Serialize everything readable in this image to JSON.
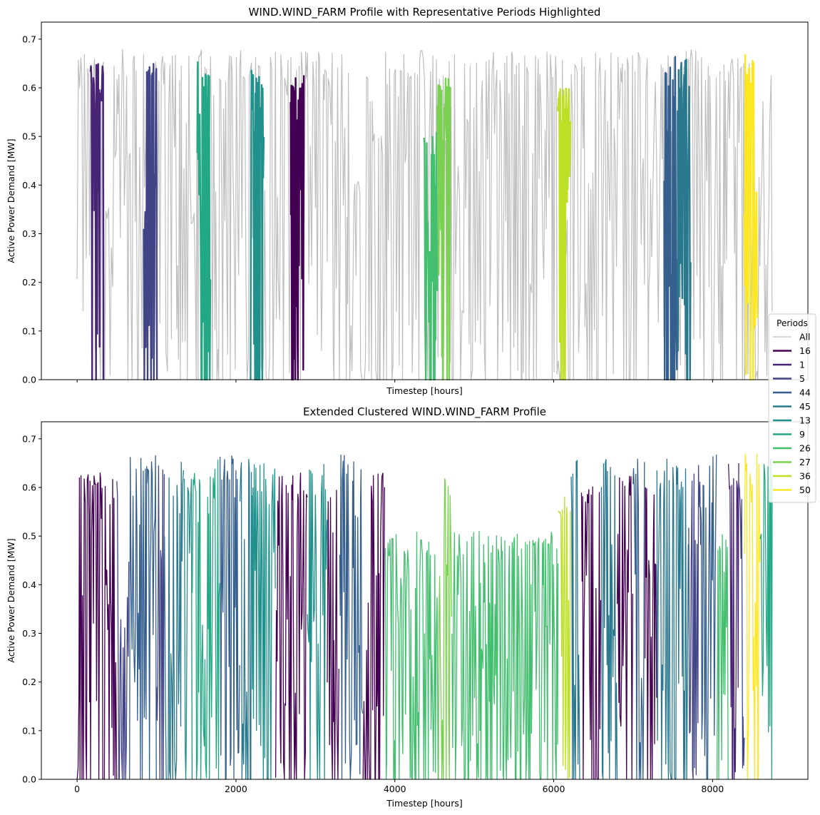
{
  "chart_data": [
    {
      "type": "line",
      "title": "WIND.WIND_FARM Profile with Representative Periods Highlighted",
      "xlabel": "Timestep [hours]",
      "ylabel": "Active Power Demand [MW]",
      "xlim": [
        -450,
        9200
      ],
      "ylim": [
        0,
        0.735
      ],
      "yticks": [
        "0.0",
        "0.1",
        "0.2",
        "0.3",
        "0.4",
        "0.5",
        "0.6",
        "0.7"
      ],
      "xticks": [
        0,
        2000,
        4000,
        6000,
        8000
      ],
      "show_xticklabels": false,
      "grid": false,
      "background_series": {
        "name": "All",
        "color": "#bfbfbf",
        "x_range": [
          0,
          8760
        ],
        "approx_min": 0.0,
        "approx_max": 0.7
      },
      "highlighted_periods": [
        {
          "name": "1",
          "color": "#482475",
          "x_range": [
            168,
            336
          ],
          "approx_max": 0.66
        },
        {
          "name": "5",
          "color": "#414487",
          "x_range": [
            840,
            1008
          ],
          "approx_max": 0.65
        },
        {
          "name": "9",
          "color": "#22a884",
          "x_range": [
            1512,
            1680
          ],
          "approx_max": 0.66
        },
        {
          "name": "13",
          "color": "#21918c",
          "x_range": [
            2184,
            2352
          ],
          "approx_max": 0.65
        },
        {
          "name": "16",
          "color": "#440154",
          "x_range": [
            2688,
            2856
          ],
          "approx_max": 0.63
        },
        {
          "name": "26",
          "color": "#44bf70",
          "x_range": [
            4368,
            4536
          ],
          "approx_max": 0.51
        },
        {
          "name": "27",
          "color": "#7ad151",
          "x_range": [
            4536,
            4704
          ],
          "approx_max": 0.62
        },
        {
          "name": "36",
          "color": "#bddf26",
          "x_range": [
            6048,
            6216
          ],
          "approx_max": 0.6
        },
        {
          "name": "44",
          "color": "#355f8d",
          "x_range": [
            7392,
            7560
          ],
          "approx_max": 0.67
        },
        {
          "name": "45",
          "color": "#2a788e",
          "x_range": [
            7560,
            7728
          ],
          "approx_max": 0.66
        },
        {
          "name": "50",
          "color": "#fde725",
          "x_range": [
            8400,
            8568
          ],
          "approx_max": 0.67
        }
      ]
    },
    {
      "type": "line",
      "title": "Extended Clustered WIND.WIND_FARM Profile",
      "xlabel": "Timestep [hours]",
      "ylabel": "Active Power Demand [MW]",
      "xlim": [
        -450,
        9200
      ],
      "ylim": [
        0,
        0.735
      ],
      "yticks": [
        "0.0",
        "0.1",
        "0.2",
        "0.3",
        "0.4",
        "0.5",
        "0.6",
        "0.7"
      ],
      "xticks": [
        0,
        2000,
        4000,
        6000,
        8000
      ],
      "show_xticklabels": true,
      "grid": false,
      "segments": [
        {
          "period": "16",
          "x_range": [
            0,
            500
          ]
        },
        {
          "period": "5",
          "x_range": [
            500,
            660
          ]
        },
        {
          "period": "44",
          "x_range": [
            660,
            1000
          ]
        },
        {
          "period": "5",
          "x_range": [
            1000,
            1100
          ]
        },
        {
          "period": "45",
          "x_range": [
            1100,
            1350
          ]
        },
        {
          "period": "13",
          "x_range": [
            1350,
            1450
          ]
        },
        {
          "period": "9",
          "x_range": [
            1450,
            1800
          ]
        },
        {
          "period": "44",
          "x_range": [
            1800,
            2050
          ]
        },
        {
          "period": "45",
          "x_range": [
            2050,
            2200
          ]
        },
        {
          "period": "13",
          "x_range": [
            2200,
            2500
          ]
        },
        {
          "period": "16",
          "x_range": [
            2500,
            2900
          ]
        },
        {
          "period": "13",
          "x_range": [
            2900,
            3150
          ]
        },
        {
          "period": "16",
          "x_range": [
            3150,
            3300
          ]
        },
        {
          "period": "44",
          "x_range": [
            3300,
            3600
          ]
        },
        {
          "period": "16",
          "x_range": [
            3600,
            3880
          ]
        },
        {
          "period": "26",
          "x_range": [
            3880,
            4550
          ]
        },
        {
          "period": "27",
          "x_range": [
            4550,
            4720
          ]
        },
        {
          "period": "26",
          "x_range": [
            4720,
            6060
          ]
        },
        {
          "period": "36",
          "x_range": [
            6060,
            6220
          ]
        },
        {
          "period": "45",
          "x_range": [
            6220,
            6350
          ]
        },
        {
          "period": "16",
          "x_range": [
            6350,
            6600
          ]
        },
        {
          "period": "45",
          "x_range": [
            6600,
            6800
          ]
        },
        {
          "period": "16",
          "x_range": [
            6800,
            7000
          ]
        },
        {
          "period": "44",
          "x_range": [
            7000,
            7150
          ]
        },
        {
          "period": "16",
          "x_range": [
            7150,
            7300
          ]
        },
        {
          "period": "45",
          "x_range": [
            7300,
            7700
          ]
        },
        {
          "period": "5",
          "x_range": [
            7700,
            7850
          ]
        },
        {
          "period": "44",
          "x_range": [
            7850,
            8050
          ]
        },
        {
          "period": "26",
          "x_range": [
            8050,
            8200
          ]
        },
        {
          "period": "1",
          "x_range": [
            8200,
            8330
          ]
        },
        {
          "period": "5",
          "x_range": [
            8330,
            8400
          ]
        },
        {
          "period": "50",
          "x_range": [
            8400,
            8600
          ]
        },
        {
          "period": "9",
          "x_range": [
            8600,
            8760
          ]
        }
      ]
    }
  ],
  "legend": {
    "title": "Periods",
    "placement": "right, between the two plots",
    "entries": [
      {
        "label": "All",
        "color": "#bfbfbf"
      },
      {
        "label": "16",
        "color": "#440154"
      },
      {
        "label": "1",
        "color": "#482475"
      },
      {
        "label": "5",
        "color": "#414487"
      },
      {
        "label": "44",
        "color": "#355f8d"
      },
      {
        "label": "45",
        "color": "#2a788e"
      },
      {
        "label": "13",
        "color": "#21918c"
      },
      {
        "label": "9",
        "color": "#22a884"
      },
      {
        "label": "26",
        "color": "#44bf70"
      },
      {
        "label": "27",
        "color": "#7ad151"
      },
      {
        "label": "36",
        "color": "#bddf26"
      },
      {
        "label": "50",
        "color": "#fde725"
      }
    ]
  }
}
